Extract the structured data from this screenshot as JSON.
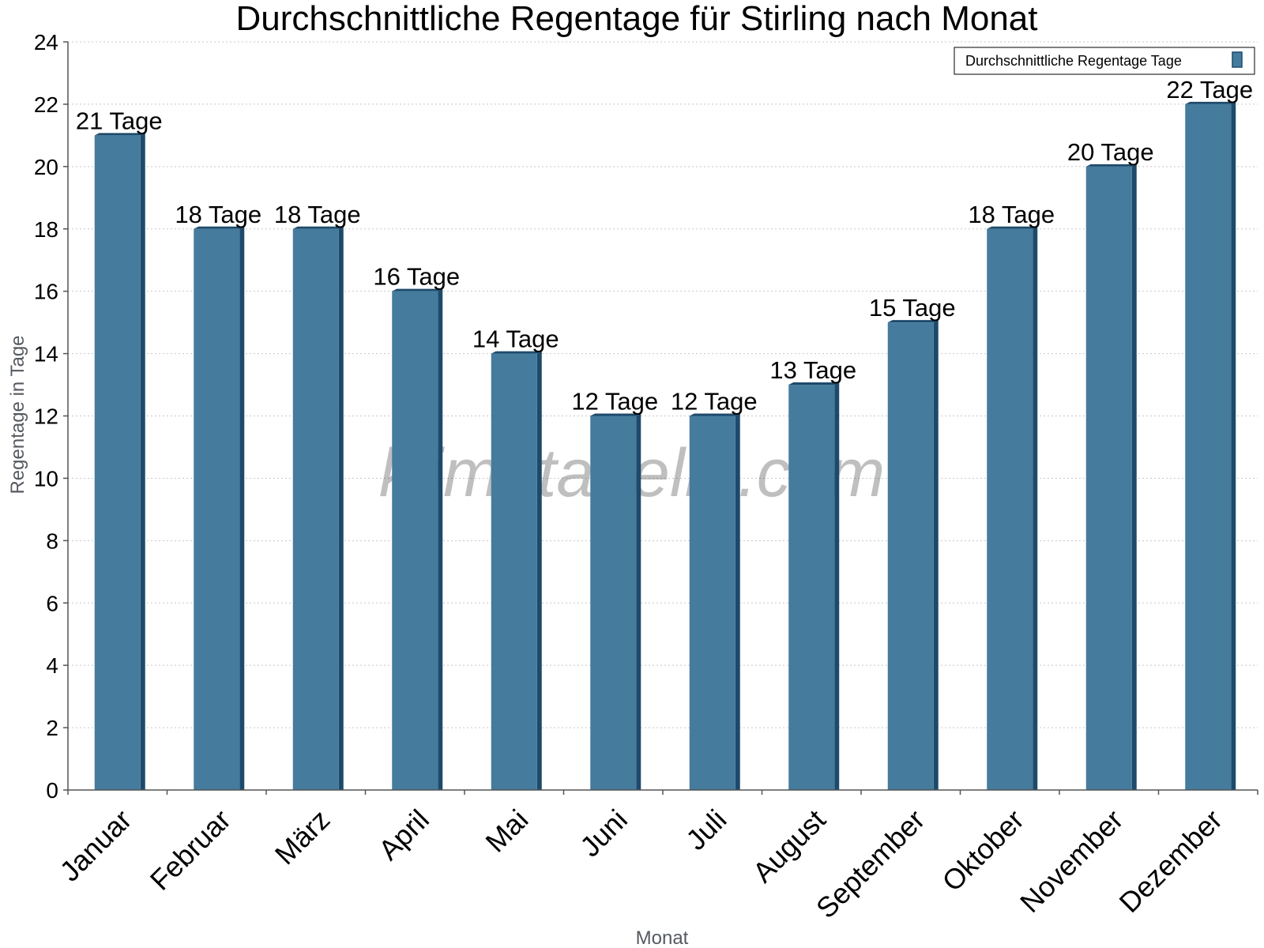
{
  "chart_data": {
    "type": "bar",
    "title": "Durchschnittliche Regentage für Stirling nach Monat",
    "xlabel": "Monat",
    "ylabel": "Regentage in Tage",
    "ylim": [
      0,
      24
    ],
    "ytick_step": 2,
    "grid": true,
    "legend_position": "top-right",
    "categories": [
      "Januar",
      "Februar",
      "März",
      "April",
      "Mai",
      "Juni",
      "Juli",
      "August",
      "September",
      "Oktober",
      "November",
      "Dezember"
    ],
    "series": [
      {
        "name": "Durchschnittliche Regentage Tage",
        "values": [
          21,
          18,
          18,
          16,
          14,
          12,
          12,
          13,
          15,
          18,
          20,
          22
        ],
        "labels": [
          "21 Tage",
          "18 Tage",
          "18 Tage",
          "16 Tage",
          "14 Tage",
          "12 Tage",
          "12 Tage",
          "13 Tage",
          "15 Tage",
          "18 Tage",
          "20 Tage",
          "22 Tage"
        ],
        "color": "#457b9d",
        "edge_color": "#1d4a6b"
      }
    ]
  },
  "watermark": "klimatabelle.com"
}
